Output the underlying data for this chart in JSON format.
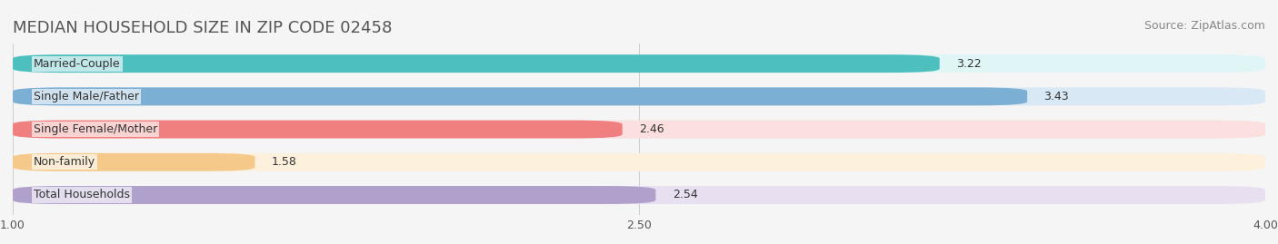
{
  "title": "MEDIAN HOUSEHOLD SIZE IN ZIP CODE 02458",
  "source": "Source: ZipAtlas.com",
  "categories": [
    "Married-Couple",
    "Single Male/Father",
    "Single Female/Mother",
    "Non-family",
    "Total Households"
  ],
  "values": [
    3.22,
    3.43,
    2.46,
    1.58,
    2.54
  ],
  "bar_colors": [
    "#4DBFBF",
    "#7BAFD4",
    "#F08080",
    "#F5C98A",
    "#B0A0CC"
  ],
  "bar_bg_colors": [
    "#E0F5F5",
    "#D8E8F5",
    "#FCE0E0",
    "#FDF0DC",
    "#E8E0F0"
  ],
  "xmin": 1.0,
  "xmax": 4.0,
  "xticks": [
    1.0,
    2.5,
    4.0
  ],
  "title_fontsize": 13,
  "source_fontsize": 9,
  "label_fontsize": 9,
  "value_fontsize": 9,
  "tick_fontsize": 9,
  "background_color": "#F5F5F5"
}
